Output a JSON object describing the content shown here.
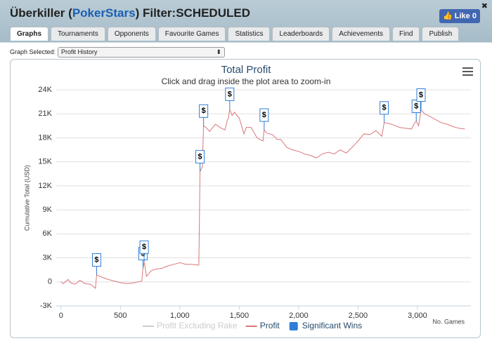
{
  "header": {
    "title_parts": [
      "Überkiller (",
      "PokerStars",
      ") Filter:SCHEDULED"
    ],
    "like_label": "Like",
    "like_count": 0
  },
  "tabs": [
    "Graphs",
    "Tournaments",
    "Opponents",
    "Favourite Games",
    "Statistics",
    "Leaderboards",
    "Achievements",
    "Find",
    "Publish"
  ],
  "graph_select": {
    "label": "Graph Selected:",
    "value": "Profit History"
  },
  "chart_data": {
    "type": "line",
    "title": "Total Profit",
    "subtitle": "Click and drag inside the plot area to zoom-in",
    "y_label": "Cumulative Total (USD)",
    "x_label": "No. Games",
    "flag_text": "$",
    "xlim": [
      -40,
      3450
    ],
    "ylim": [
      -3000,
      24000
    ],
    "xticks": [
      0,
      500,
      {
        "value": 1000,
        "label": "1,000"
      },
      {
        "value": 1500,
        "label": "1,500"
      },
      {
        "value": 2000,
        "label": "2,000"
      },
      {
        "value": 2500,
        "label": "2,500"
      },
      {
        "value": 3000,
        "label": "3,000"
      }
    ],
    "yticks": [
      {
        "value": -3000,
        "label": "-3K"
      },
      0,
      {
        "value": 3000,
        "label": "3K"
      },
      {
        "value": 6000,
        "label": "6K"
      },
      {
        "value": 9000,
        "label": "9K"
      },
      {
        "value": 12000,
        "label": "12K"
      },
      {
        "value": 15000,
        "label": "15K"
      },
      {
        "value": 18000,
        "label": "18K"
      },
      {
        "value": 21000,
        "label": "21K"
      },
      {
        "value": 24000,
        "label": "24K"
      }
    ],
    "grid": true,
    "series": [
      {
        "name": "Profit Excluding Rake",
        "color": "#cccccc",
        "hidden": true
      },
      {
        "name": "Profit",
        "color": "#d9777a",
        "x": [
          0,
          20,
          60,
          80,
          120,
          160,
          200,
          250,
          290,
          300,
          340,
          400,
          450,
          500,
          560,
          620,
          680,
          690,
          700,
          720,
          760,
          800,
          850,
          900,
          950,
          1000,
          1050,
          1100,
          1150,
          1160,
          1170,
          1190,
          1200,
          1220,
          1250,
          1300,
          1350,
          1380,
          1400,
          1410,
          1420,
          1440,
          1460,
          1480,
          1500,
          1540,
          1560,
          1600,
          1650,
          1700,
          1710,
          1730,
          1780,
          1820,
          1850,
          1900,
          1950,
          2000,
          2050,
          2100,
          2150,
          2200,
          2250,
          2300,
          2350,
          2400,
          2450,
          2500,
          2550,
          2600,
          2650,
          2700,
          2720,
          2760,
          2800,
          2850,
          2900,
          2950,
          2970,
          2990,
          3010,
          3030,
          3060,
          3100,
          3150,
          3200,
          3250,
          3300,
          3350,
          3400
        ],
        "values": [
          0,
          -200,
          300,
          -100,
          -300,
          200,
          -200,
          -300,
          -800,
          900,
          600,
          300,
          100,
          -100,
          -200,
          -100,
          100,
          1700,
          2500,
          700,
          1400,
          1600,
          1700,
          2000,
          2200,
          2400,
          2200,
          2200,
          2100,
          2100,
          13800,
          14400,
          19500,
          19300,
          18800,
          19700,
          19200,
          19000,
          20200,
          20500,
          21600,
          20800,
          21200,
          20800,
          20500,
          18500,
          19300,
          19300,
          18000,
          17600,
          19000,
          18600,
          18400,
          17800,
          17800,
          16800,
          16500,
          16300,
          16000,
          15800,
          15500,
          16000,
          16200,
          16000,
          16500,
          16100,
          16800,
          17600,
          18500,
          18400,
          18900,
          18200,
          19900,
          19800,
          19600,
          19300,
          19200,
          19100,
          19700,
          20100,
          19500,
          21500,
          21000,
          20700,
          20300,
          19900,
          19700,
          19400,
          19200,
          19100
        ]
      },
      {
        "name": "Significant Wins",
        "color": "#2f7ed8",
        "flags": true,
        "x": [
          300,
          690,
          700,
          1170,
          1200,
          1420,
          1710,
          2720,
          2990,
          3030
        ],
        "values": [
          900,
          1700,
          2500,
          13800,
          19500,
          21600,
          19000,
          19900,
          20100,
          21500
        ]
      }
    ]
  }
}
